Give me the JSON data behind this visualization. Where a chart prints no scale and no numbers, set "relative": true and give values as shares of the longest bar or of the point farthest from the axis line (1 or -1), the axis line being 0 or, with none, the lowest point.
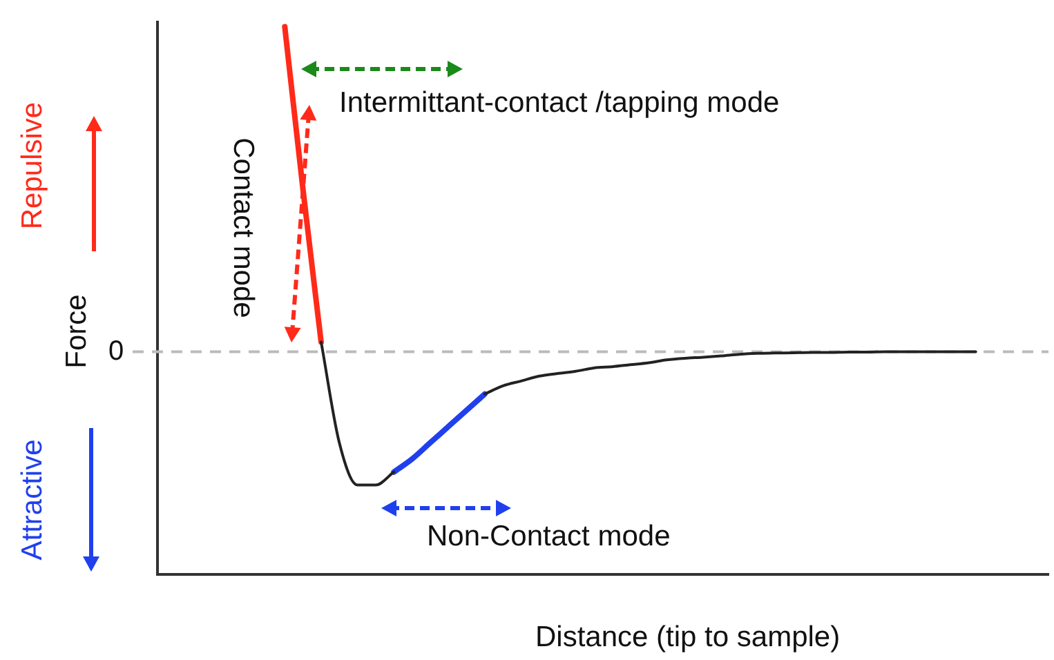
{
  "chart_data": {
    "type": "line",
    "relative": true,
    "xlabel": "Distance (tip to sample)",
    "ylabel": "Force",
    "categories": [
      null,
      null,
      null,
      null,
      null,
      null,
      null,
      null,
      null,
      null,
      null,
      null,
      null,
      null,
      null,
      null,
      null,
      null,
      null,
      null,
      null,
      null,
      null,
      null,
      null,
      null,
      null,
      null,
      null,
      null,
      null,
      null,
      null,
      null,
      null,
      null,
      null,
      null,
      null,
      null,
      null,
      null,
      null,
      null,
      null,
      null,
      null,
      null,
      null,
      null
    ],
    "series": [
      {
        "color": "#222222",
        "values": [
          null,
          null,
          null,
          null,
          null,
          null,
          null,
          null,
          null,
          0.03,
          -0.28,
          -0.41,
          -0.41,
          -0.37,
          null,
          null,
          null,
          null,
          -0.13,
          -0.105,
          -0.09,
          -0.075,
          -0.067,
          -0.06,
          -0.05,
          -0.046,
          -0.04,
          -0.034,
          -0.025,
          -0.02,
          -0.017,
          -0.013,
          -0.008,
          -0.005,
          -0.004,
          -0.003,
          -0.002,
          -0.002,
          -0.001,
          -0.001,
          0,
          0,
          0,
          0,
          0,
          0,
          null,
          null,
          null,
          null
        ]
      },
      {
        "color": "#ff2a1a",
        "values": [
          null,
          null,
          null,
          null,
          null,
          null,
          null,
          1,
          0.5,
          0.03,
          null,
          null,
          null,
          null,
          null,
          null,
          null,
          null,
          null,
          null,
          null,
          null,
          null,
          null,
          null,
          null,
          null,
          null,
          null,
          null,
          null,
          null,
          null,
          null,
          null,
          null,
          null,
          null,
          null,
          null,
          null,
          null,
          null,
          null,
          null,
          null,
          null,
          null,
          null,
          null
        ]
      },
      {
        "color": "#2040ee",
        "values": [
          null,
          null,
          null,
          null,
          null,
          null,
          null,
          null,
          null,
          null,
          null,
          null,
          null,
          -0.37,
          -0.33,
          -0.28,
          -0.23,
          -0.18,
          -0.13,
          null,
          null,
          null,
          null,
          null,
          null,
          null,
          null,
          null,
          null,
          null,
          null,
          null,
          null,
          null,
          null,
          null,
          null,
          null,
          null,
          null,
          null,
          null,
          null,
          null,
          null,
          null,
          null,
          null,
          null,
          null
        ]
      }
    ],
    "ref_lines": [
      {
        "axis": "y",
        "value": 0,
        "label": "0",
        "color": "#bbbbbb",
        "line_style": "dashed"
      }
    ],
    "annotations": [
      "Intermittant-contact /tapping mode",
      "Contact mode",
      "Non-Contact mode",
      "Repulsive",
      "Attractive"
    ]
  }
}
